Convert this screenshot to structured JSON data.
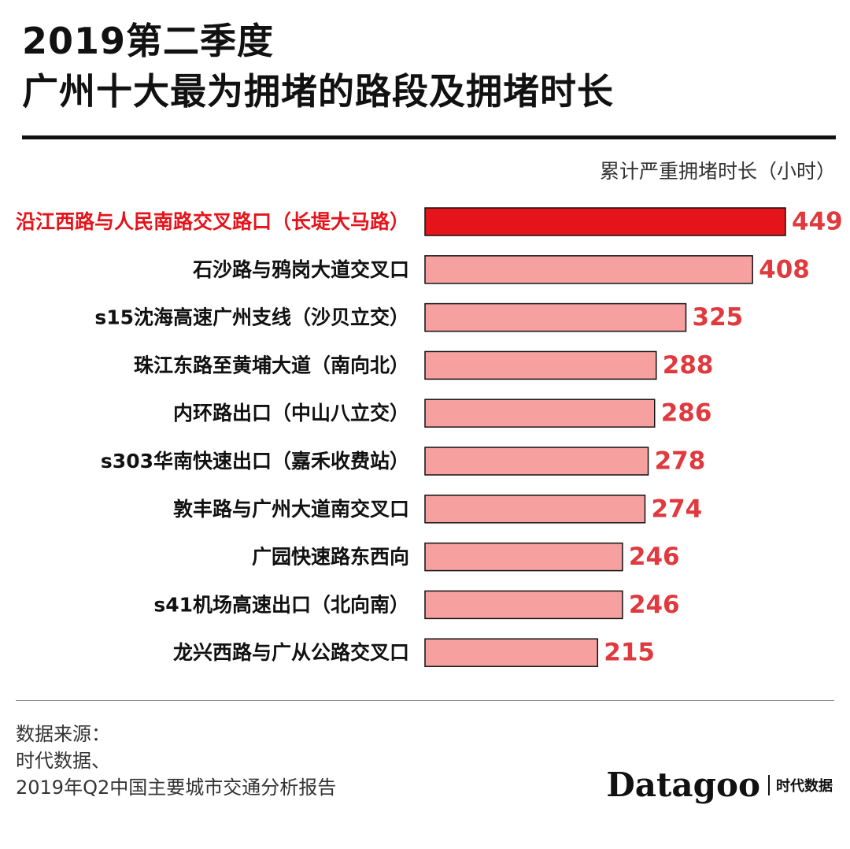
{
  "title": {
    "line1": "2019第二季度",
    "line2": "广州十大最为拥堵的路段及拥堵时长"
  },
  "unit_label": "累计严重拥堵时长（小时）",
  "source": {
    "heading": "数据来源：",
    "line1": "时代数据、",
    "line2": "2019年Q2中国主要城市交通分析报告"
  },
  "brand": {
    "name": "Datagoo",
    "cn": "时代数据"
  },
  "colors": {
    "highlight_bar": "#e5141b",
    "bar": "#f6a0a0",
    "highlight_label": "#e5141b",
    "label": "#111111",
    "value": "#e0393e"
  },
  "chart_data": {
    "type": "bar",
    "orientation": "horizontal",
    "categories": [
      "沿江西路与人民南路交叉路口（长堤大马路）",
      "石沙路与鸦岗大道交叉口",
      "s15沈海高速广州支线（沙贝立交）",
      "珠江东路至黄埔大道（南向北）",
      "内环路出口（中山八立交）",
      "s303华南快速出口（嘉禾收费站）",
      "敦丰路与广州大道南交叉口",
      "广园快速路东西向",
      "s41机场高速出口（北向南）",
      "龙兴西路与广从公路交叉口"
    ],
    "values": [
      449,
      408,
      325,
      288,
      286,
      278,
      274,
      246,
      246,
      215
    ],
    "highlight_index": 0,
    "xlim": [
      0,
      449
    ],
    "grid": false,
    "legend": "none"
  }
}
